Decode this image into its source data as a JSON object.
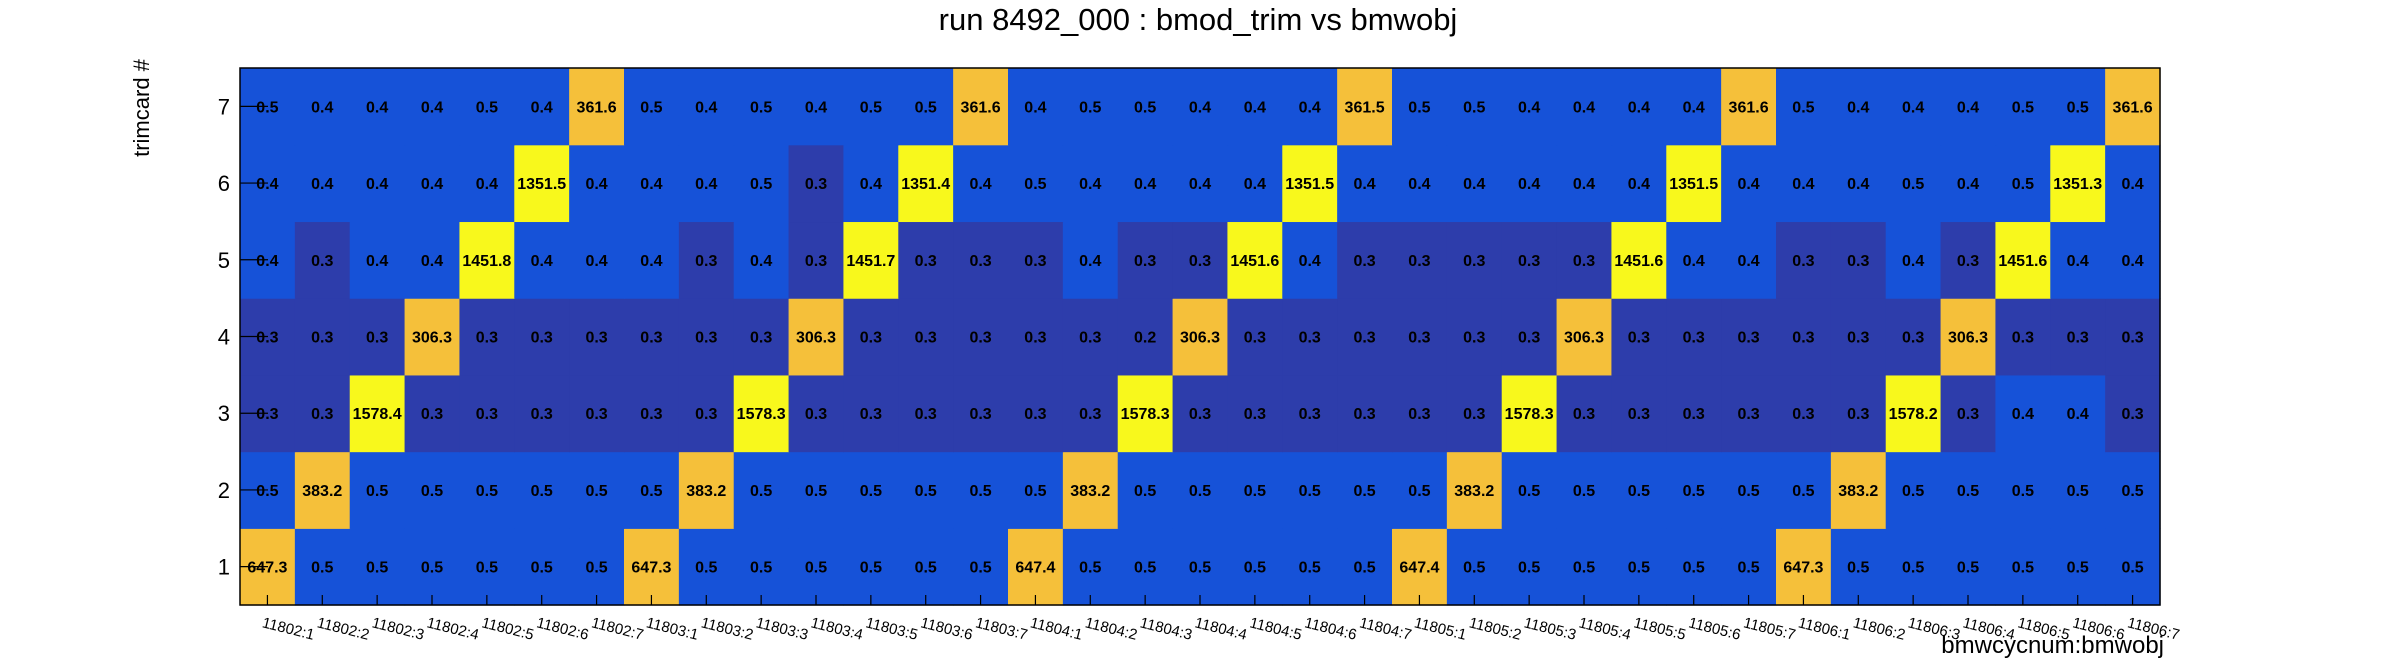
{
  "chart_data": {
    "type": "heatmap",
    "title": "run 8492_000 : bmod_trim vs bmwobj",
    "xlabel": "bmwcycnum:bmwobj",
    "ylabel": "trimcard #",
    "x_categories": [
      "11802:1",
      "11802:2",
      "11802:3",
      "11802:4",
      "11802:5",
      "11802:6",
      "11802:7",
      "11803:1",
      "11803:2",
      "11803:3",
      "11803:4",
      "11803:5",
      "11803:6",
      "11803:7",
      "11804:1",
      "11804:2",
      "11804:3",
      "11804:4",
      "11804:5",
      "11804:6",
      "11804:7",
      "11805:1",
      "11805:2",
      "11805:3",
      "11805:4",
      "11805:5",
      "11805:6",
      "11805:7",
      "11806:1",
      "11806:2",
      "11806:3",
      "11806:4",
      "11806:5",
      "11806:6",
      "11806:7"
    ],
    "y_categories": [
      "1",
      "2",
      "3",
      "4",
      "5",
      "6",
      "7"
    ],
    "rows": [
      {
        "y": "1",
        "values": [
          "647.3",
          "0.5",
          "0.5",
          "0.5",
          "0.5",
          "0.5",
          "0.5",
          "647.3",
          "0.5",
          "0.5",
          "0.5",
          "0.5",
          "0.5",
          "0.5",
          "647.4",
          "0.5",
          "0.5",
          "0.5",
          "0.5",
          "0.5",
          "0.5",
          "647.4",
          "0.5",
          "0.5",
          "0.5",
          "0.5",
          "0.5",
          "0.5",
          "647.3",
          "0.5",
          "0.5",
          "0.5",
          "0.5",
          "0.5",
          "0.5"
        ]
      },
      {
        "y": "2",
        "values": [
          "0.5",
          "383.2",
          "0.5",
          "0.5",
          "0.5",
          "0.5",
          "0.5",
          "0.5",
          "383.2",
          "0.5",
          "0.5",
          "0.5",
          "0.5",
          "0.5",
          "0.5",
          "383.2",
          "0.5",
          "0.5",
          "0.5",
          "0.5",
          "0.5",
          "0.5",
          "383.2",
          "0.5",
          "0.5",
          "0.5",
          "0.5",
          "0.5",
          "0.5",
          "383.2",
          "0.5",
          "0.5",
          "0.5",
          "0.5",
          "0.5"
        ]
      },
      {
        "y": "3",
        "values": [
          "0.3",
          "0.3",
          "1578.4",
          "0.3",
          "0.3",
          "0.3",
          "0.3",
          "0.3",
          "0.3",
          "1578.3",
          "0.3",
          "0.3",
          "0.3",
          "0.3",
          "0.3",
          "0.3",
          "1578.3",
          "0.3",
          "0.3",
          "0.3",
          "0.3",
          "0.3",
          "0.3",
          "1578.3",
          "0.3",
          "0.3",
          "0.3",
          "0.3",
          "0.3",
          "0.3",
          "1578.2",
          "0.3",
          "0.4",
          "0.4",
          "0.3"
        ]
      },
      {
        "y": "4",
        "values": [
          "0.3",
          "0.3",
          "0.3",
          "306.3",
          "0.3",
          "0.3",
          "0.3",
          "0.3",
          "0.3",
          "0.3",
          "306.3",
          "0.3",
          "0.3",
          "0.3",
          "0.3",
          "0.3",
          "0.2",
          "306.3",
          "0.3",
          "0.3",
          "0.3",
          "0.3",
          "0.3",
          "0.3",
          "306.3",
          "0.3",
          "0.3",
          "0.3",
          "0.3",
          "0.3",
          "0.3",
          "306.3",
          "0.3",
          "0.3",
          "0.3"
        ]
      },
      {
        "y": "5",
        "values": [
          "0.4",
          "0.3",
          "0.4",
          "0.4",
          "1451.8",
          "0.4",
          "0.4",
          "0.4",
          "0.3",
          "0.4",
          "0.3",
          "1451.7",
          "0.3",
          "0.3",
          "0.3",
          "0.4",
          "0.3",
          "0.3",
          "1451.6",
          "0.4",
          "0.3",
          "0.3",
          "0.3",
          "0.3",
          "0.3",
          "1451.6",
          "0.4",
          "0.4",
          "0.3",
          "0.3",
          "0.4",
          "0.3",
          "1451.6",
          "0.4",
          "0.4"
        ]
      },
      {
        "y": "6",
        "values": [
          "0.4",
          "0.4",
          "0.4",
          "0.4",
          "0.4",
          "1351.5",
          "0.4",
          "0.4",
          "0.4",
          "0.5",
          "0.3",
          "0.4",
          "1351.4",
          "0.4",
          "0.5",
          "0.4",
          "0.4",
          "0.4",
          "0.4",
          "1351.5",
          "0.4",
          "0.4",
          "0.4",
          "0.4",
          "0.4",
          "0.4",
          "1351.5",
          "0.4",
          "0.4",
          "0.4",
          "0.5",
          "0.4",
          "0.5",
          "1351.3",
          "0.4"
        ]
      },
      {
        "y": "7",
        "values": [
          "0.5",
          "0.4",
          "0.4",
          "0.4",
          "0.5",
          "0.4",
          "361.6",
          "0.5",
          "0.4",
          "0.5",
          "0.4",
          "0.5",
          "0.5",
          "361.6",
          "0.4",
          "0.5",
          "0.5",
          "0.4",
          "0.4",
          "0.4",
          "361.5",
          "0.5",
          "0.5",
          "0.4",
          "0.4",
          "0.4",
          "0.4",
          "361.6",
          "0.5",
          "0.4",
          "0.4",
          "0.4",
          "0.5",
          "0.5",
          "361.6"
        ]
      }
    ],
    "colors": {
      "low": "#2d3dab",
      "mid": "#1652d8",
      "high_orange": "#f5c03a",
      "high_yellow": "#f8f81c"
    }
  }
}
